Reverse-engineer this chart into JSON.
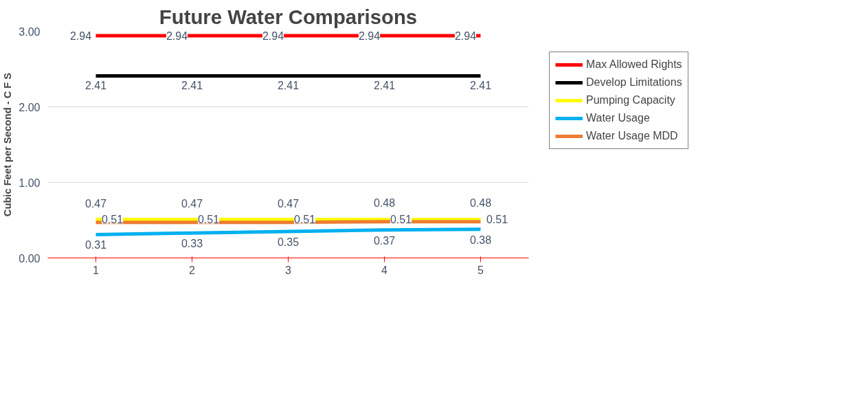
{
  "chart_data": {
    "type": "line",
    "title": "Future Water Comparisons",
    "ylabel": "Cubic Feet per Second - C F S",
    "categories": [
      "1",
      "2",
      "3",
      "4",
      "5"
    ],
    "series": [
      {
        "name": "Max Allowed Rights",
        "color": "#ff0000",
        "values": [
          2.94,
          2.94,
          2.94,
          2.94,
          2.94
        ]
      },
      {
        "name": "Develop Limitations",
        "color": "#000000",
        "values": [
          2.41,
          2.41,
          2.41,
          2.41,
          2.41
        ]
      },
      {
        "name": "Pumping Capacity",
        "color": "#ffff00",
        "values": [
          0.51,
          0.51,
          0.51,
          0.51,
          0.51
        ]
      },
      {
        "name": "Water Usage",
        "color": "#00b0f0",
        "values": [
          0.31,
          0.33,
          0.35,
          0.37,
          0.38
        ]
      },
      {
        "name": "Water Usage MDD",
        "color": "#ed7d31",
        "values": [
          0.47,
          0.47,
          0.47,
          0.48,
          0.48
        ]
      }
    ],
    "ylim": [
      0,
      3
    ],
    "yticks": [
      {
        "value": 0,
        "label": "0.00"
      },
      {
        "value": 1,
        "label": "1.00"
      },
      {
        "value": 2,
        "label": "2.00"
      },
      {
        "value": 3,
        "label": "3.00"
      }
    ],
    "grid": "y",
    "legend": "right",
    "data_labels": true,
    "marker": "none",
    "line_style": "solid"
  }
}
